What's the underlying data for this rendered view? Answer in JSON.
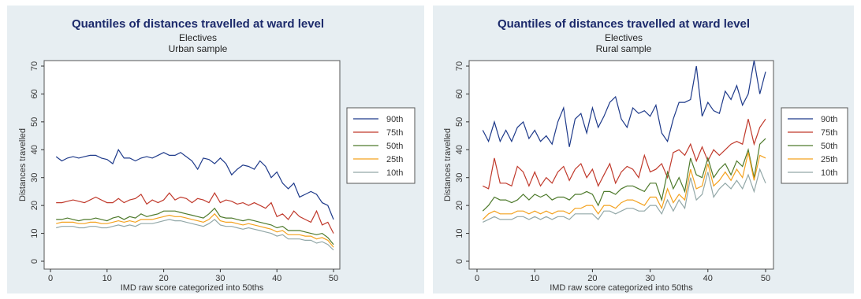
{
  "chart_data": [
    {
      "type": "line",
      "title": "Quantiles of distances travelled at ward level",
      "subtitle": [
        "Electives",
        "Urban sample"
      ],
      "xlabel": "IMD raw score categorized into 50ths",
      "ylabel": "Distances travelled",
      "xlim": [
        0,
        50
      ],
      "ylim": [
        0,
        70
      ],
      "xticks": [
        0,
        10,
        20,
        30,
        40,
        50
      ],
      "yticks": [
        0,
        10,
        20,
        30,
        40,
        50,
        60,
        70
      ],
      "grid": false,
      "legend_position": "right",
      "x": [
        1,
        2,
        3,
        4,
        5,
        6,
        7,
        8,
        9,
        10,
        11,
        12,
        13,
        14,
        15,
        16,
        17,
        18,
        19,
        20,
        21,
        22,
        23,
        24,
        25,
        26,
        27,
        28,
        29,
        30,
        31,
        32,
        33,
        34,
        35,
        36,
        37,
        38,
        39,
        40,
        41,
        42,
        43,
        44,
        45,
        46,
        47,
        48,
        49,
        50
      ],
      "series": [
        {
          "name": "90th",
          "color": "#1e3a8a",
          "values": [
            37.5,
            36,
            37,
            37.5,
            37,
            37.5,
            38,
            38,
            37,
            36.5,
            35,
            40,
            37,
            37,
            36,
            37,
            37.5,
            37,
            38,
            39,
            38,
            38,
            39,
            37.5,
            36,
            33,
            37,
            36.5,
            35,
            37,
            35,
            31,
            33,
            34.5,
            34,
            33,
            36,
            34,
            30,
            32,
            28,
            26,
            28,
            23,
            24,
            25,
            24,
            21,
            20,
            15
          ]
        },
        {
          "name": "75th",
          "color": "#c0392b",
          "values": [
            21,
            21,
            21.5,
            22,
            21.5,
            21,
            22,
            23,
            22,
            21,
            21,
            22.5,
            21,
            22,
            22.5,
            24,
            20.5,
            22,
            21,
            22,
            24.5,
            22,
            23,
            22.5,
            21,
            22.5,
            22,
            21,
            24.5,
            21,
            22,
            21.5,
            20.5,
            21,
            20,
            21,
            20,
            19,
            21,
            16,
            17,
            15,
            18,
            16,
            15,
            14,
            18,
            13,
            14,
            10
          ]
        },
        {
          "name": "50th",
          "color": "#4e7a2c",
          "values": [
            15,
            15,
            15.5,
            15,
            14.5,
            15,
            15,
            15.5,
            15,
            14.5,
            15.5,
            16,
            15,
            16,
            15.5,
            17,
            16,
            16.5,
            17,
            18,
            18,
            18,
            17.5,
            17,
            16.5,
            16,
            15.5,
            17,
            19,
            16,
            15.5,
            15.5,
            15,
            14.5,
            15,
            14.5,
            14,
            13.5,
            13,
            12,
            12.5,
            11,
            11,
            11,
            10.5,
            10,
            9.5,
            10,
            8.5,
            6
          ]
        },
        {
          "name": "25th",
          "color": "#f4a21f",
          "values": [
            13.5,
            14,
            14,
            14,
            13.5,
            13.5,
            14,
            14,
            13.5,
            13.5,
            14,
            14.5,
            14,
            14.5,
            14,
            15,
            15,
            15,
            15.5,
            16,
            16.5,
            16,
            16,
            15.5,
            15,
            14.5,
            14,
            15,
            17,
            14.5,
            14,
            14,
            13.5,
            13,
            13.5,
            13,
            12.5,
            12,
            11.5,
            10.5,
            11,
            9.5,
            9.5,
            9.5,
            9,
            9,
            8,
            8.5,
            7.5,
            5
          ]
        },
        {
          "name": "10th",
          "color": "#93a8a8",
          "values": [
            12,
            12.5,
            12.5,
            12.5,
            12,
            12,
            12.5,
            12.5,
            12,
            12,
            12.5,
            13,
            12.5,
            13,
            12.5,
            13.5,
            13.5,
            13.5,
            14,
            14.5,
            15,
            14.5,
            14.5,
            14,
            13.5,
            13,
            12.5,
            13.5,
            15,
            13,
            12.5,
            12.5,
            12,
            11.5,
            12,
            11.5,
            11,
            10.5,
            10,
            9,
            9.5,
            8,
            8,
            8,
            7.5,
            7.5,
            6.5,
            7,
            6,
            4
          ]
        }
      ]
    },
    {
      "type": "line",
      "title": "Quantiles of distances travelled at ward level",
      "subtitle": [
        "Electives",
        "Rural sample"
      ],
      "xlabel": "IMD raw score categorized into 50ths",
      "ylabel": "Distances travelled",
      "xlim": [
        0,
        50
      ],
      "ylim": [
        0,
        70
      ],
      "xticks": [
        0,
        10,
        20,
        30,
        40,
        50
      ],
      "yticks": [
        0,
        10,
        20,
        30,
        40,
        50,
        60,
        70
      ],
      "grid": false,
      "legend_position": "right",
      "x": [
        1,
        2,
        3,
        4,
        5,
        6,
        7,
        8,
        9,
        10,
        11,
        12,
        13,
        14,
        15,
        16,
        17,
        18,
        19,
        20,
        21,
        22,
        23,
        24,
        25,
        26,
        27,
        28,
        29,
        30,
        31,
        32,
        33,
        34,
        35,
        36,
        37,
        38,
        39,
        40,
        41,
        42,
        43,
        44,
        45,
        46,
        47,
        48,
        49,
        50
      ],
      "series": [
        {
          "name": "90th",
          "color": "#1e3a8a",
          "values": [
            47,
            43,
            50,
            43,
            47,
            43,
            48,
            50,
            44,
            47,
            43,
            45,
            42,
            50,
            55,
            41,
            51,
            53,
            46,
            55,
            48,
            52,
            57,
            59,
            51,
            48,
            55,
            53,
            54,
            52,
            56,
            46,
            43,
            51,
            57,
            57,
            58,
            70,
            52,
            57,
            54,
            53,
            61,
            58,
            63,
            56,
            60,
            72,
            60,
            68
          ]
        },
        {
          "name": "75th",
          "color": "#c0392b",
          "values": [
            27,
            26,
            37,
            28,
            28,
            27,
            34,
            32,
            27,
            32,
            27,
            30,
            28,
            32,
            34,
            29,
            33,
            35,
            30,
            33,
            27,
            31,
            35,
            28,
            32,
            34,
            33,
            30,
            38,
            32,
            33,
            35,
            30,
            39,
            40,
            38,
            42,
            36,
            41,
            36,
            40,
            38,
            40,
            42,
            43,
            42,
            51,
            42,
            48,
            51
          ]
        },
        {
          "name": "50th",
          "color": "#4e7a2c",
          "values": [
            18,
            20,
            23,
            22,
            22,
            21,
            22,
            24,
            22,
            24,
            23,
            24,
            22,
            23,
            23,
            22,
            24,
            24,
            25,
            24,
            20,
            25,
            25,
            24,
            26,
            27,
            27,
            26,
            25,
            28,
            28,
            22,
            32,
            26,
            30,
            25,
            37,
            31,
            30,
            37,
            30,
            33,
            35,
            31,
            36,
            34,
            40,
            30,
            42,
            44
          ]
        },
        {
          "name": "25th",
          "color": "#f4a21f",
          "values": [
            15,
            17,
            18,
            17,
            17,
            17,
            18,
            18,
            17,
            18,
            17,
            18,
            17,
            18,
            18,
            17,
            19,
            19,
            20,
            20,
            17,
            20,
            20,
            19,
            21,
            22,
            22,
            21,
            20,
            23,
            23,
            19,
            26,
            21,
            24,
            22,
            33,
            26,
            27,
            35,
            27,
            29,
            32,
            29,
            33,
            30,
            39,
            29,
            38,
            37
          ]
        },
        {
          "name": "10th",
          "color": "#93a8a8",
          "values": [
            14,
            15,
            16,
            15,
            15,
            15,
            16,
            16,
            15,
            16,
            15,
            16,
            15,
            16,
            16,
            15,
            17,
            17,
            17,
            17,
            15,
            18,
            18,
            17,
            18,
            19,
            19,
            18,
            18,
            20,
            20,
            17,
            22,
            18,
            22,
            19,
            30,
            22,
            24,
            32,
            23,
            26,
            28,
            26,
            29,
            26,
            31,
            25,
            33,
            28
          ]
        }
      ]
    }
  ]
}
